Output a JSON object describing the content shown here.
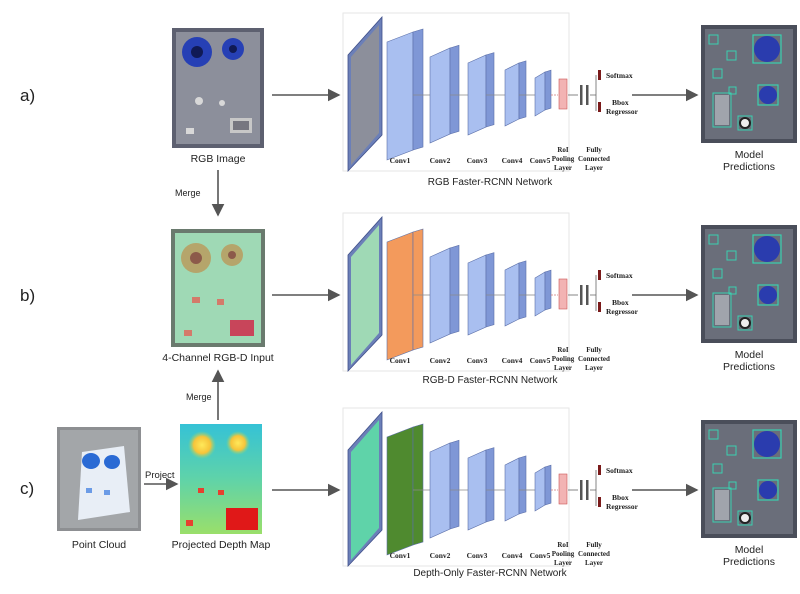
{
  "rows": [
    {
      "label": "a)",
      "input_caption": "RGB Image",
      "network_caption": "RGB Faster-RCNN Network",
      "output_caption": [
        "Model",
        "Predictions"
      ],
      "conv1_color": "#a9bff0"
    },
    {
      "label": "b)",
      "input_caption": "4-Channel RGB-D Input",
      "network_caption": "RGB-D Faster-RCNN Network",
      "output_caption": [
        "Model",
        "Predictions"
      ],
      "conv1_color": "#f39a5c"
    },
    {
      "label": "c)",
      "input_caption": "Projected Depth Map",
      "network_caption": "Depth-Only Faster-RCNN Network",
      "output_caption": [
        "Model",
        "Predictions"
      ],
      "conv1_color": "#4f8a2f"
    }
  ],
  "layers": [
    "Conv1",
    "Conv2",
    "Conv3",
    "Conv4",
    "Conv5"
  ],
  "roi_label": [
    "RoI",
    "Pooling",
    "Layer"
  ],
  "fc_label": [
    "Fully",
    "Connected",
    "Layer"
  ],
  "softmax_label": "Softmax",
  "bbox_label": [
    "Bbox",
    "Regressor"
  ],
  "merge_label": "Merge",
  "project_label": "Project",
  "point_cloud_caption": "Point Cloud",
  "colors": {
    "conv_face": "#a9bff0",
    "conv_side": "#7f97d6",
    "conv_top": "#c9d6f6",
    "arrow": "#555555",
    "roi": "#f2b3b3",
    "head": "#7a1a1a",
    "detection_box": "#3ad0b0"
  }
}
